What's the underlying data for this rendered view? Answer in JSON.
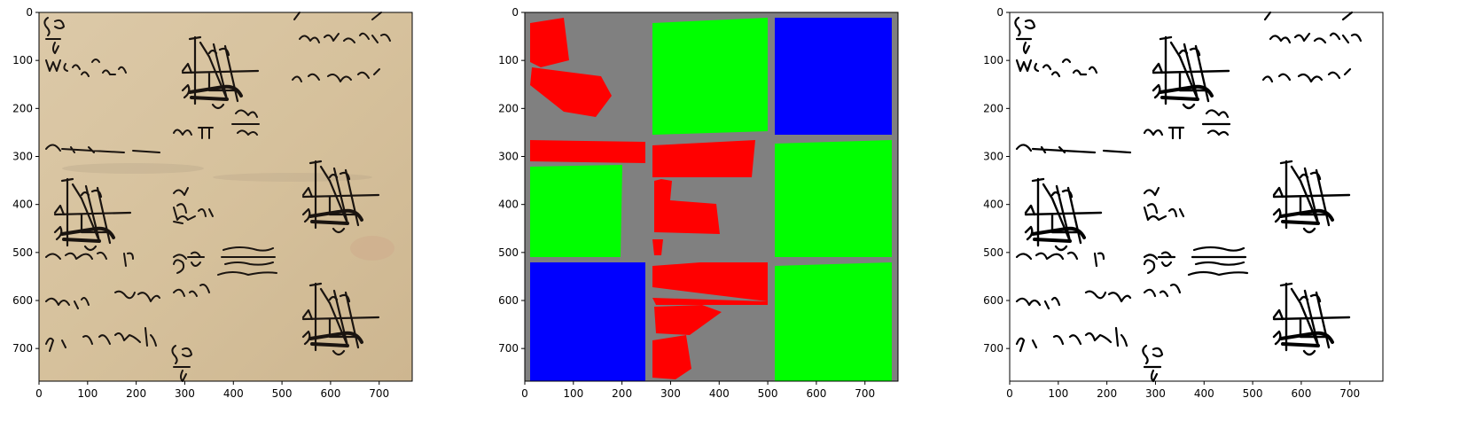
{
  "figure": {
    "panels": [
      {
        "id": "manuscript",
        "description_name": "original-manuscript-panel",
        "x_ticks": [
          "0",
          "100",
          "200",
          "300",
          "400",
          "500",
          "600",
          "700"
        ],
        "y_ticks": [
          "0",
          "100",
          "200",
          "300",
          "400",
          "500",
          "600",
          "700"
        ],
        "background": "#d8c4a2"
      },
      {
        "id": "segmentation",
        "description_name": "segmentation-mask-panel",
        "x_ticks": [
          "0",
          "100",
          "200",
          "300",
          "400",
          "500",
          "600",
          "700"
        ],
        "y_ticks": [
          "0",
          "100",
          "200",
          "300",
          "400",
          "500",
          "600",
          "700"
        ],
        "background": "#808080",
        "colors": {
          "text": "#ff0000",
          "figure": "#00ff00",
          "empty": "#0000ff",
          "background": "#808080"
        }
      },
      {
        "id": "binarized",
        "description_name": "binarized-output-panel",
        "x_ticks": [
          "0",
          "100",
          "200",
          "300",
          "400",
          "500",
          "600",
          "700"
        ],
        "y_ticks": [
          "0",
          "100",
          "200",
          "300",
          "400",
          "500",
          "600",
          "700"
        ],
        "background": "#ffffff"
      }
    ],
    "axis_range": [
      0,
      768
    ]
  }
}
